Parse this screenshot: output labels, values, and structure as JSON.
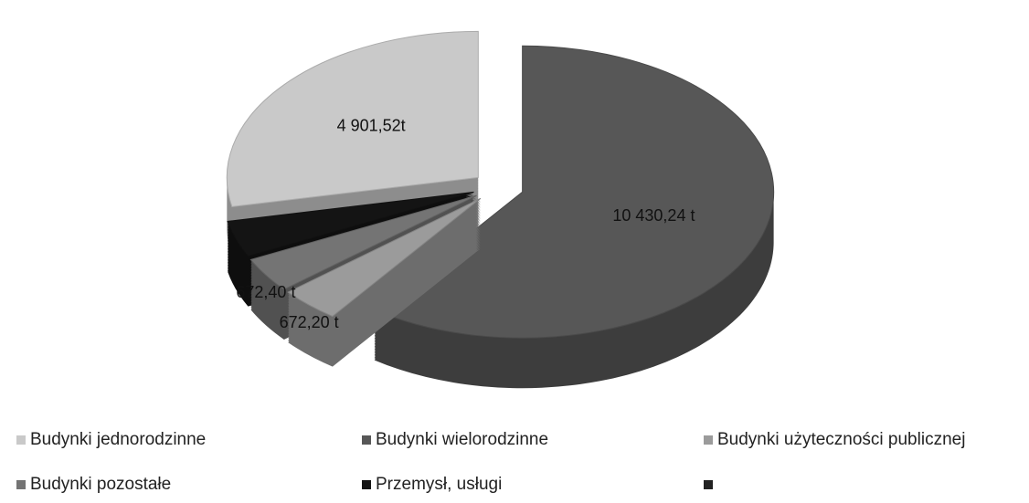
{
  "chart_data": {
    "type": "pie3d",
    "categories": [
      "Budynki  jednorodzinne",
      "Budynki wielorodzinne",
      "Budynki użyteczności publicznej",
      "Budynki pozostałe",
      "Przemysł, usługi",
      null
    ],
    "values": [
      4901.52,
      10430.24,
      672.2,
      672.4,
      700,
      null
    ],
    "value_labels": [
      "4 901,52t",
      "10 430,24  t",
      "672,20 t",
      "672,40 t",
      null,
      null
    ],
    "colors": [
      "#c9c9c9",
      "#575757",
      "#9b9b9b",
      "#747474",
      "#141414",
      "#222222"
    ],
    "legend": "bottom"
  }
}
